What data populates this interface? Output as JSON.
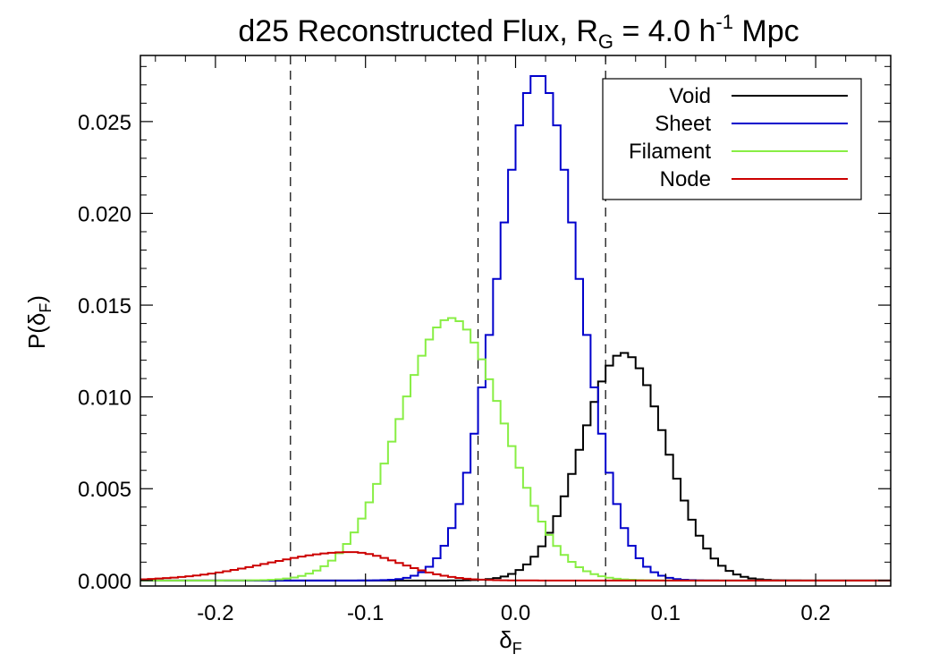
{
  "chart_data": {
    "type": "line",
    "title": {
      "main": "d25 Reconstructed Flux, R",
      "sub1": "G",
      "mid": " = 4.0 h",
      "sup": "-1",
      "end": " Mpc"
    },
    "xlabel": {
      "main": "δ",
      "sub": "F"
    },
    "ylabel": {
      "main": "P(δ",
      "sub": "F",
      "end": ")"
    },
    "xlim": [
      -0.25,
      0.25
    ],
    "ylim": [
      -0.0003,
      0.0286
    ],
    "xticks": [
      -0.2,
      -0.1,
      0.0,
      0.1,
      0.2
    ],
    "xtick_labels": [
      "-0.2",
      "-0.1",
      "0.0",
      "0.1",
      "0.2"
    ],
    "yticks": [
      0.0,
      0.005,
      0.01,
      0.015,
      0.02,
      0.025
    ],
    "ytick_labels": [
      "0.000",
      "0.005",
      "0.010",
      "0.015",
      "0.020",
      "0.025"
    ],
    "vlines": [
      -0.15,
      -0.025,
      0.06
    ],
    "legend_position": "top-right",
    "series": [
      {
        "name": "Void",
        "color": "#000000",
        "kind": "gauss",
        "amp": 0.0124,
        "mu": 0.072,
        "sigma": 0.028
      },
      {
        "name": "Sheet",
        "color": "#0000cc",
        "kind": "gauss",
        "amp": 0.0276,
        "mu": 0.015,
        "sigma": 0.027
      },
      {
        "name": "Filament",
        "color": "#88ee44",
        "kind": "gauss",
        "amp": 0.0143,
        "mu": -0.043,
        "sigma": 0.035
      },
      {
        "name": "Node",
        "color": "#cc0000",
        "kind": "skew",
        "amp": 0.00155,
        "mu": -0.11,
        "sigma_left": 0.055,
        "sigma_right": 0.033
      }
    ]
  }
}
